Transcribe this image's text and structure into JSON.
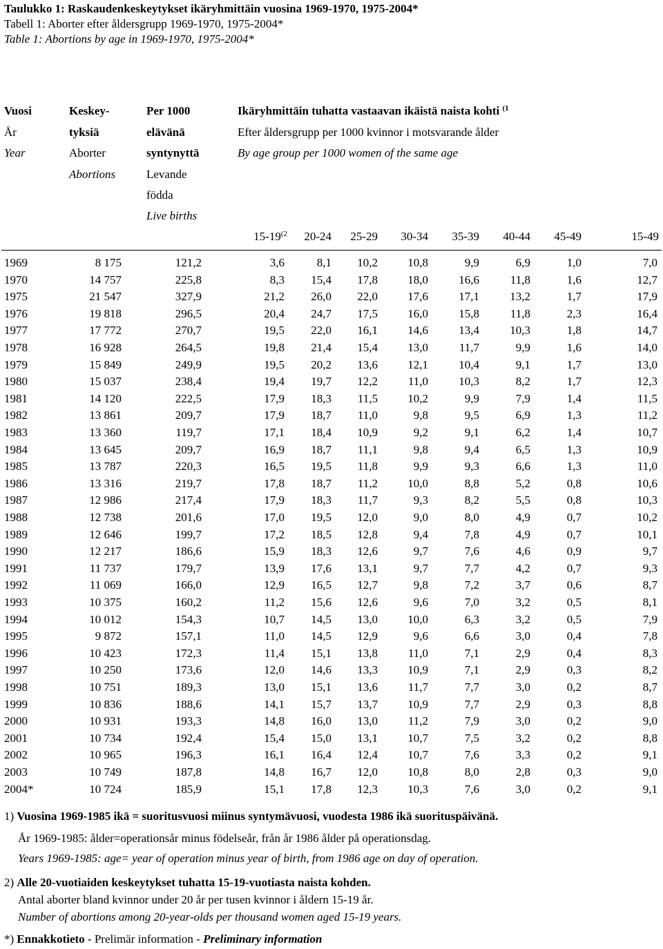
{
  "titles": {
    "fi": "Taulukko 1: Raskaudenkeskeytykset ikäryhmittäin vuosina 1969-1970, 1975-2004*",
    "sv": "Tabell 1: Aborter efter åldersgrupp 1969-1970, 1975-2004*",
    "en": "Table 1: Abortions by age in 1969-1970, 1975-2004*"
  },
  "header": {
    "year": {
      "fi": "Vuosi",
      "sv": "År",
      "en": "Year"
    },
    "abortions": {
      "fi1": "Keskey-",
      "fi2": "tyksiä",
      "sv": "Aborter",
      "en": "Abortions"
    },
    "per1000": {
      "fi1": "Per 1000",
      "fi2": "elävänä",
      "fi3": "syntynyttä",
      "sv1": "Levande",
      "sv2": "födda",
      "en": "Live births"
    },
    "agegroup": {
      "fi": "Ikäryhmittäin tuhatta vastaavan ikäistä naista kohti",
      "fi_sup": "(1",
      "sv": "Efter åldersgrupp per 1000 kvinnor i motsvarande ålder",
      "en": "By age group per 1000 women of the same age"
    },
    "age_columns": [
      "15-19",
      "20-24",
      "25-29",
      "30-34",
      "35-39",
      "40-44",
      "45-49",
      "15-49"
    ],
    "age_first_sup": "(2"
  },
  "rows": [
    [
      "1969",
      "8 175",
      "121,2",
      "3,6",
      "8,1",
      "10,2",
      "10,8",
      "9,9",
      "6,9",
      "1,0",
      "7,0"
    ],
    [
      "1970",
      "14 757",
      "225,8",
      "8,3",
      "15,4",
      "17,8",
      "18,0",
      "16,6",
      "11,8",
      "1,6",
      "12,7"
    ],
    [
      "1975",
      "21 547",
      "327,9",
      "21,2",
      "26,0",
      "22,0",
      "17,6",
      "17,1",
      "13,2",
      "1,7",
      "17,9"
    ],
    [
      "1976",
      "19 818",
      "296,5",
      "20,4",
      "24,7",
      "17,5",
      "16,0",
      "15,8",
      "11,8",
      "2,3",
      "16,4"
    ],
    [
      "1977",
      "17 772",
      "270,7",
      "19,5",
      "22,0",
      "16,1",
      "14,6",
      "13,4",
      "10,3",
      "1,8",
      "14,7"
    ],
    [
      "1978",
      "16 928",
      "264,5",
      "19,8",
      "21,4",
      "15,4",
      "13,0",
      "11,7",
      "9,9",
      "1,6",
      "14,0"
    ],
    [
      "1979",
      "15 849",
      "249,9",
      "19,5",
      "20,2",
      "13,6",
      "12,1",
      "10,4",
      "9,1",
      "1,7",
      "13,0"
    ],
    [
      "1980",
      "15 037",
      "238,4",
      "19,4",
      "19,7",
      "12,2",
      "11,0",
      "10,3",
      "8,2",
      "1,7",
      "12,3"
    ],
    [
      "1981",
      "14 120",
      "222,5",
      "17,9",
      "18,3",
      "11,5",
      "10,2",
      "9,9",
      "7,9",
      "1,4",
      "11,5"
    ],
    [
      "1982",
      "13 861",
      "209,7",
      "17,9",
      "18,7",
      "11,0",
      "9,8",
      "9,5",
      "6,9",
      "1,3",
      "11,2"
    ],
    [
      "1983",
      "13 360",
      "119,7",
      "17,1",
      "18,4",
      "10,9",
      "9,2",
      "9,1",
      "6,2",
      "1,4",
      "10,7"
    ],
    [
      "1984",
      "13 645",
      "209,7",
      "16,9",
      "18,7",
      "11,1",
      "9,8",
      "9,4",
      "6,5",
      "1,3",
      "10,9"
    ],
    [
      "1985",
      "13 787",
      "220,3",
      "16,5",
      "19,5",
      "11,8",
      "9,9",
      "9,3",
      "6,6",
      "1,3",
      "11,0"
    ],
    [
      "1986",
      "13 316",
      "219,7",
      "17,8",
      "18,7",
      "11,2",
      "10,0",
      "8,8",
      "5,2",
      "0,8",
      "10,6"
    ],
    [
      "1987",
      "12 986",
      "217,4",
      "17,9",
      "18,3",
      "11,7",
      "9,3",
      "8,2",
      "5,5",
      "0,8",
      "10,3"
    ],
    [
      "1988",
      "12 738",
      "201,6",
      "17,0",
      "19,5",
      "12,0",
      "9,0",
      "8,0",
      "4,9",
      "0,7",
      "10,2"
    ],
    [
      "1989",
      "12 646",
      "199,7",
      "17,2",
      "18,5",
      "12,8",
      "9,4",
      "7,8",
      "4,9",
      "0,7",
      "10,1"
    ],
    [
      "1990",
      "12 217",
      "186,6",
      "15,9",
      "18,3",
      "12,6",
      "9,7",
      "7,6",
      "4,6",
      "0,9",
      "9,7"
    ],
    [
      "1991",
      "11 737",
      "179,7",
      "13,9",
      "17,6",
      "13,1",
      "9,7",
      "7,7",
      "4,2",
      "0,7",
      "9,3"
    ],
    [
      "1992",
      "11 069",
      "166,0",
      "12,9",
      "16,5",
      "12,7",
      "9,8",
      "7,2",
      "3,7",
      "0,6",
      "8,7"
    ],
    [
      "1993",
      "10 375",
      "160,2",
      "11,2",
      "15,6",
      "12,6",
      "9,6",
      "7,0",
      "3,2",
      "0,5",
      "8,1"
    ],
    [
      "1994",
      "10 012",
      "154,3",
      "10,7",
      "14,5",
      "13,0",
      "10,0",
      "6,3",
      "3,2",
      "0,5",
      "7,9"
    ],
    [
      "1995",
      "9 872",
      "157,1",
      "11,0",
      "14,5",
      "12,9",
      "9,6",
      "6,6",
      "3,0",
      "0,4",
      "7,8"
    ],
    [
      "1996",
      "10 423",
      "172,3",
      "11,4",
      "15,1",
      "13,8",
      "11,0",
      "7,1",
      "2,9",
      "0,4",
      "8,3"
    ],
    [
      "1997",
      "10 250",
      "173,6",
      "12,0",
      "14,6",
      "13,3",
      "10,9",
      "7,1",
      "2,9",
      "0,3",
      "8,2"
    ],
    [
      "1998",
      "10 751",
      "189,3",
      "13,0",
      "15,1",
      "13,6",
      "11,7",
      "7,7",
      "3,0",
      "0,2",
      "8,7"
    ],
    [
      "1999",
      "10 836",
      "188,6",
      "14,1",
      "15,7",
      "13,7",
      "10,9",
      "7,7",
      "2,9",
      "0,3",
      "8,8"
    ],
    [
      "2000",
      "10 931",
      "193,3",
      "14,8",
      "16,0",
      "13,0",
      "11,2",
      "7,9",
      "3,0",
      "0,2",
      "9,0"
    ],
    [
      "2001",
      "10 734",
      "192,4",
      "15,4",
      "15,0",
      "13,1",
      "10,7",
      "7,5",
      "3,2",
      "0,2",
      "8,8"
    ],
    [
      "2002",
      "10 965",
      "196,3",
      "16,1",
      "16,4",
      "12,4",
      "10,7",
      "7,6",
      "3,3",
      "0,2",
      "9,1"
    ],
    [
      "2003",
      "10 749",
      "187,8",
      "14,8",
      "16,7",
      "12,0",
      "10,8",
      "8,0",
      "2,8",
      "0,3",
      "9,0"
    ],
    [
      "2004*",
      "10 724",
      "185,9",
      "15,1",
      "17,8",
      "12,3",
      "10,3",
      "7,6",
      "3,0",
      "0,2",
      "9,1"
    ]
  ],
  "notes": {
    "n1_prefix": "1) ",
    "n1_fi": "Vuosina 1969-1985 ikä = suoritusvuosi miinus syntymävuosi, vuodesta 1986 ikä suorituspäivänä.",
    "n1_sv": "År 1969-1985: ålder=operationsår minus födelseår, från år 1986 ålder på operationsdag.",
    "n1_en": "Years 1969-1985: age= year of operation minus year of birth, from 1986 age on day of operation.",
    "n2_prefix": "2) ",
    "n2_fi": "Alle 20-vuotiaiden keskeytykset tuhatta 15-19-vuotiasta naista kohden.",
    "n2_sv": "Antal aborter bland kvinnor under 20 år per tusen kvinnor i åldern 15-19 år.",
    "n2_en": "Number of abortions among 20-year-olds per thousand women aged 15-19 years.",
    "n3_prefix": "*) ",
    "n3_fi": "Ennakkotieto",
    "n3_sep1": " - ",
    "n3_sv": "Prelimär information",
    "n3_sep2": " - ",
    "n3_en": "Preliminary information"
  }
}
